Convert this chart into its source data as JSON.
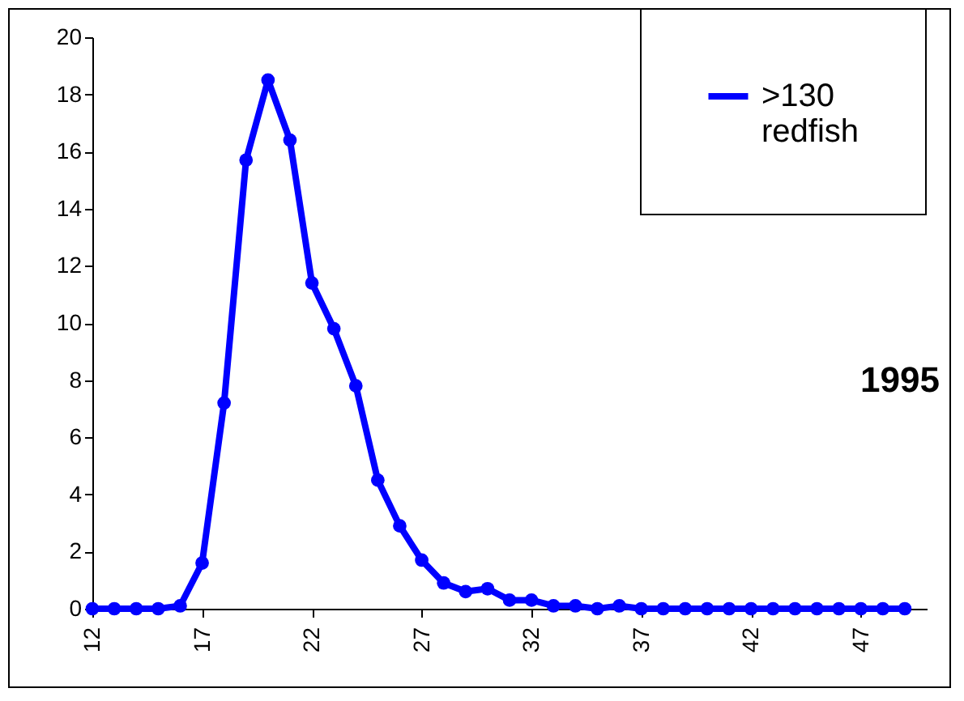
{
  "chart_data": {
    "type": "line",
    "x": [
      12,
      13,
      14,
      15,
      16,
      17,
      18,
      19,
      20,
      21,
      22,
      23,
      24,
      25,
      26,
      27,
      28,
      29,
      30,
      31,
      32,
      33,
      34,
      35,
      36,
      37,
      38,
      39,
      40,
      41,
      42,
      43,
      44,
      45,
      46,
      47,
      48,
      49
    ],
    "series": [
      {
        "name": ">130 redfish",
        "color": "#0000ff",
        "values": [
          0,
          0,
          0,
          0,
          0.1,
          1.6,
          7.2,
          15.7,
          18.5,
          16.4,
          11.4,
          9.8,
          7.8,
          4.5,
          2.9,
          1.7,
          0.9,
          0.6,
          0.7,
          0.3,
          0.3,
          0.1,
          0.1,
          0,
          0.1,
          0,
          0,
          0,
          0,
          0,
          0,
          0,
          0,
          0,
          0,
          0,
          0,
          0
        ]
      }
    ],
    "xlim": [
      12,
      50
    ],
    "xticks": [
      12,
      17,
      22,
      27,
      32,
      37,
      42,
      47
    ],
    "ylim": [
      0,
      20
    ],
    "yticks": [
      0,
      2,
      4,
      6,
      8,
      10,
      12,
      14,
      16,
      18,
      20
    ],
    "grid": false,
    "legend": "top right",
    "marker": "circle",
    "line_style": "solid",
    "annotations": [
      "1995"
    ]
  }
}
